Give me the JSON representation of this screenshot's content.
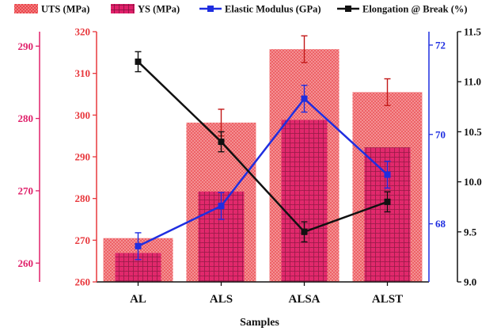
{
  "chart_data": {
    "type": "bar",
    "categories": [
      "AL",
      "ALS",
      "ALSA",
      "ALST"
    ],
    "xlabel": "Samples",
    "legend": [
      {
        "key": "uts",
        "label": "UTS (MPa)"
      },
      {
        "key": "ys",
        "label": "YS (MPa)"
      },
      {
        "key": "em",
        "label": "Elastic Modulus (GPa)"
      },
      {
        "key": "el",
        "label": "Elongation @ Break (%)"
      }
    ],
    "series": [
      {
        "key": "uts",
        "name": "UTS (MPa)",
        "kind": "bar",
        "axis": "uts",
        "values": [
          270.5,
          298.2,
          315.8,
          305.5
        ],
        "errors": [
          0,
          3.2,
          3.2,
          3.2
        ],
        "color": "#e8383d"
      },
      {
        "key": "ys",
        "name": "YS (MPa)",
        "kind": "bar",
        "axis": "ys",
        "values": [
          261.4,
          269.9,
          279.8,
          276.0
        ],
        "errors": [
          0,
          0,
          0,
          0
        ],
        "color": "#e0206a"
      },
      {
        "key": "em",
        "name": "Elastic Modulus (GPa)",
        "kind": "line",
        "axis": "em",
        "values": [
          67.5,
          68.4,
          70.8,
          69.1
        ],
        "errors": [
          0.3,
          0.3,
          0.3,
          0.3
        ],
        "color": "#1f2ee0"
      },
      {
        "key": "el",
        "name": "Elongation @ Break (%)",
        "kind": "line",
        "axis": "el",
        "values": [
          11.2,
          10.4,
          9.5,
          9.8
        ],
        "errors": [
          0.1,
          0.1,
          0.1,
          0.1
        ],
        "color": "#111111"
      }
    ],
    "axes": {
      "ys": {
        "min": 257.4,
        "max": 292.0,
        "ticks": [
          260,
          270,
          280,
          290
        ],
        "color": "#e0206a",
        "side": "left"
      },
      "uts": {
        "min": 260,
        "max": 320,
        "ticks": [
          260,
          270,
          280,
          290,
          300,
          310,
          320
        ],
        "color": "#e8383d",
        "side": "left"
      },
      "em": {
        "min": 66.7,
        "max": 72.3,
        "ticks": [
          68,
          70,
          72
        ],
        "color": "#1f2ee0",
        "side": "right"
      },
      "el": {
        "min": 9.0,
        "max": 11.5,
        "ticks": [
          "9.0",
          "9.5",
          "10.0",
          "10.5",
          "11.0",
          "11.5"
        ],
        "color": "#111111",
        "side": "right"
      }
    },
    "grid": false,
    "legend_position": "top"
  }
}
